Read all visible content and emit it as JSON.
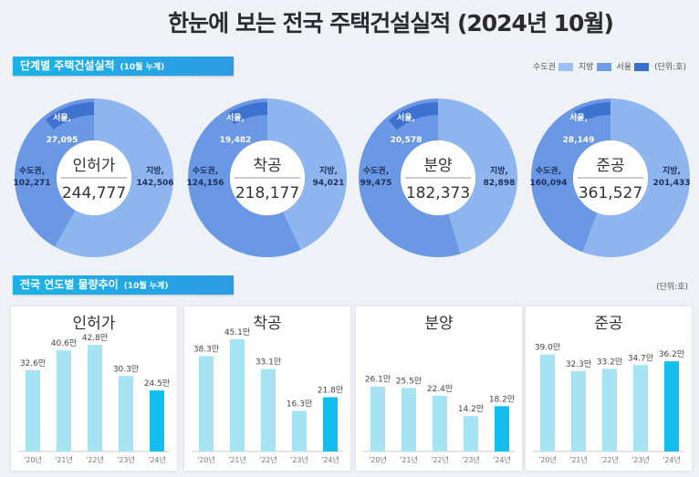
{
  "title": "한눈에 보는 전국 주택건설실적 (2024년 10월)",
  "section1": {
    "label": "단계별 주택건설실적",
    "sub": "(10월 누계)"
  },
  "section2": {
    "label": "전국 연도별 물량추이",
    "sub": "(10월 누계)"
  },
  "legend": [
    {
      "name": "수도권",
      "color": "#9cc0f0"
    },
    {
      "name": "지방",
      "color": "#6f9be6"
    },
    {
      "name": "서울",
      "color": "#3a6fcf"
    }
  ],
  "unit": "(단위:호)",
  "chart_data": [
    {
      "type": "pie",
      "title": "인허가",
      "total": "244,777",
      "slices": [
        {
          "name": "지방",
          "value": 142506,
          "label": "지방,",
          "vlabel": "142,506"
        },
        {
          "name": "수도권",
          "value": 102271,
          "label": "수도권,",
          "vlabel": "102,271"
        },
        {
          "name": "서울",
          "value": 27095,
          "label": "서울,",
          "vlabel": "27,095"
        }
      ]
    },
    {
      "type": "pie",
      "title": "착공",
      "total": "218,177",
      "slices": [
        {
          "name": "지방",
          "value": 94021,
          "label": "지방,",
          "vlabel": "94,021"
        },
        {
          "name": "수도권",
          "value": 124156,
          "label": "수도권,",
          "vlabel": "124,156"
        },
        {
          "name": "서울",
          "value": 19482,
          "label": "서울,",
          "vlabel": "19,482"
        }
      ]
    },
    {
      "type": "pie",
      "title": "분양",
      "total": "182,373",
      "slices": [
        {
          "name": "지방",
          "value": 82898,
          "label": "지방,",
          "vlabel": "82,898"
        },
        {
          "name": "수도권",
          "value": 99475,
          "label": "수도권,",
          "vlabel": "99,475"
        },
        {
          "name": "서울",
          "value": 20578,
          "label": "서울,",
          "vlabel": "20,578"
        }
      ]
    },
    {
      "type": "pie",
      "title": "준공",
      "total": "361,527",
      "slices": [
        {
          "name": "지방",
          "value": 201433,
          "label": "지방,",
          "vlabel": "201,433"
        },
        {
          "name": "수도권",
          "value": 160094,
          "label": "수도권,",
          "vlabel": "160,094"
        },
        {
          "name": "서울",
          "value": 28149,
          "label": "서울,",
          "vlabel": "28,149"
        }
      ]
    },
    {
      "type": "bar",
      "title": "인허가",
      "categories": [
        "'20년",
        "'21년",
        "'22년",
        "'23년",
        "'24년"
      ],
      "values": [
        32.6,
        40.6,
        42.8,
        30.3,
        24.5
      ],
      "labels": [
        "32.6만",
        "40.6만",
        "42.8만",
        "30.3만",
        "24.5만"
      ]
    },
    {
      "type": "bar",
      "title": "착공",
      "categories": [
        "'20년",
        "'21년",
        "'22년",
        "'23년",
        "'24년"
      ],
      "values": [
        38.3,
        45.1,
        33.1,
        16.3,
        21.8
      ],
      "labels": [
        "38.3만",
        "45.1만",
        "33.1만",
        "16.3만",
        "21.8만"
      ]
    },
    {
      "type": "bar",
      "title": "분양",
      "categories": [
        "'20년",
        "'21년",
        "'22년",
        "'23년",
        "'24년"
      ],
      "values": [
        26.1,
        25.5,
        22.4,
        14.2,
        18.2
      ],
      "labels": [
        "26.1만",
        "25.5만",
        "22.4만",
        "14.2만",
        "18.2만"
      ]
    },
    {
      "type": "bar",
      "title": "준공",
      "categories": [
        "'20년",
        "'21년",
        "'22년",
        "'23년",
        "'24년"
      ],
      "values": [
        39.0,
        32.3,
        33.2,
        34.7,
        36.2
      ],
      "labels": [
        "39.0만",
        "32.3만",
        "33.2만",
        "34.7만",
        "36.2만"
      ]
    }
  ],
  "colors": {
    "donut_jibang": "#8fb5ee",
    "donut_sudo": "#6b98e4",
    "donut_seoul": "#3d72d0",
    "bar_past": "#a6e3f3",
    "bar_current": "#14bdf0"
  }
}
